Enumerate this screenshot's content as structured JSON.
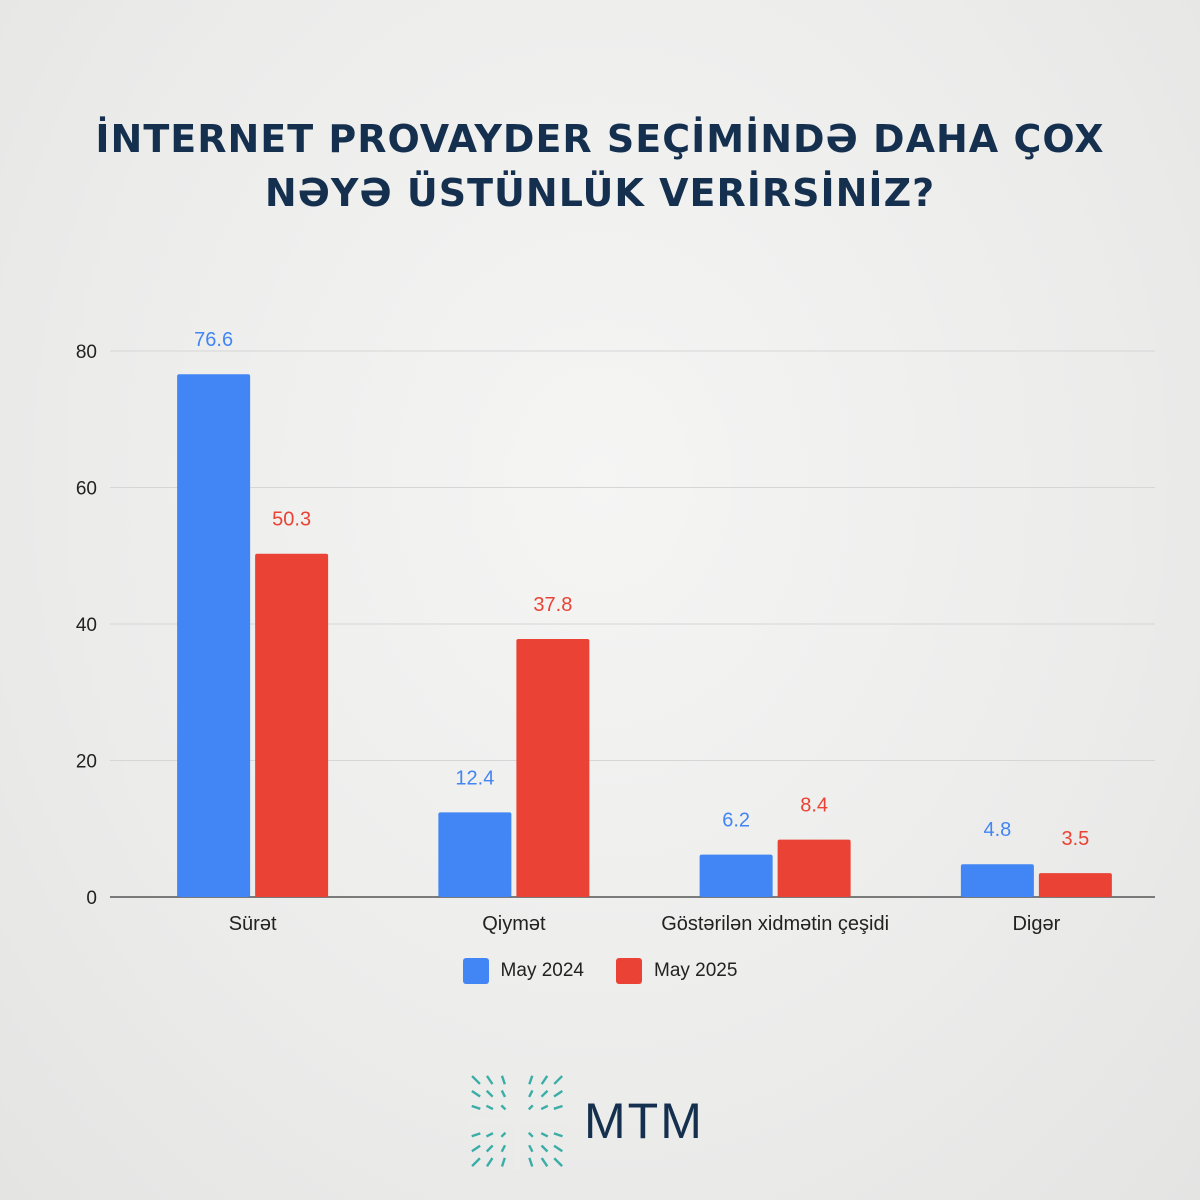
{
  "title": {
    "line1": "İNTERNET PROVAYDER SEÇİMİNDƏ DAHA ÇOX",
    "line2": "NƏYƏ ÜSTÜNLÜK VERİRSİNİZ?"
  },
  "brand": {
    "name": "MTM"
  },
  "colors": {
    "series_2024": "#4285f4",
    "series_2025": "#ea4335",
    "title": "#15304f",
    "grid": "#d6d6d6",
    "axis_text": "#222222"
  },
  "chart_data": {
    "type": "bar",
    "categories": [
      "Sürət",
      "Qiymət",
      "Göstərilən xidmətin çeşidi",
      "Digər"
    ],
    "series": [
      {
        "name": "May 2024",
        "values": [
          76.6,
          12.4,
          6.2,
          4.8
        ],
        "color": "#4285f4"
      },
      {
        "name": "May 2025",
        "values": [
          50.3,
          37.8,
          8.4,
          3.5
        ],
        "color": "#ea4335"
      }
    ],
    "yticks": [
      0,
      20,
      40,
      60,
      80
    ],
    "ylim": [
      0,
      80
    ],
    "grid": true,
    "legend_position": "bottom",
    "data_labels": true
  }
}
